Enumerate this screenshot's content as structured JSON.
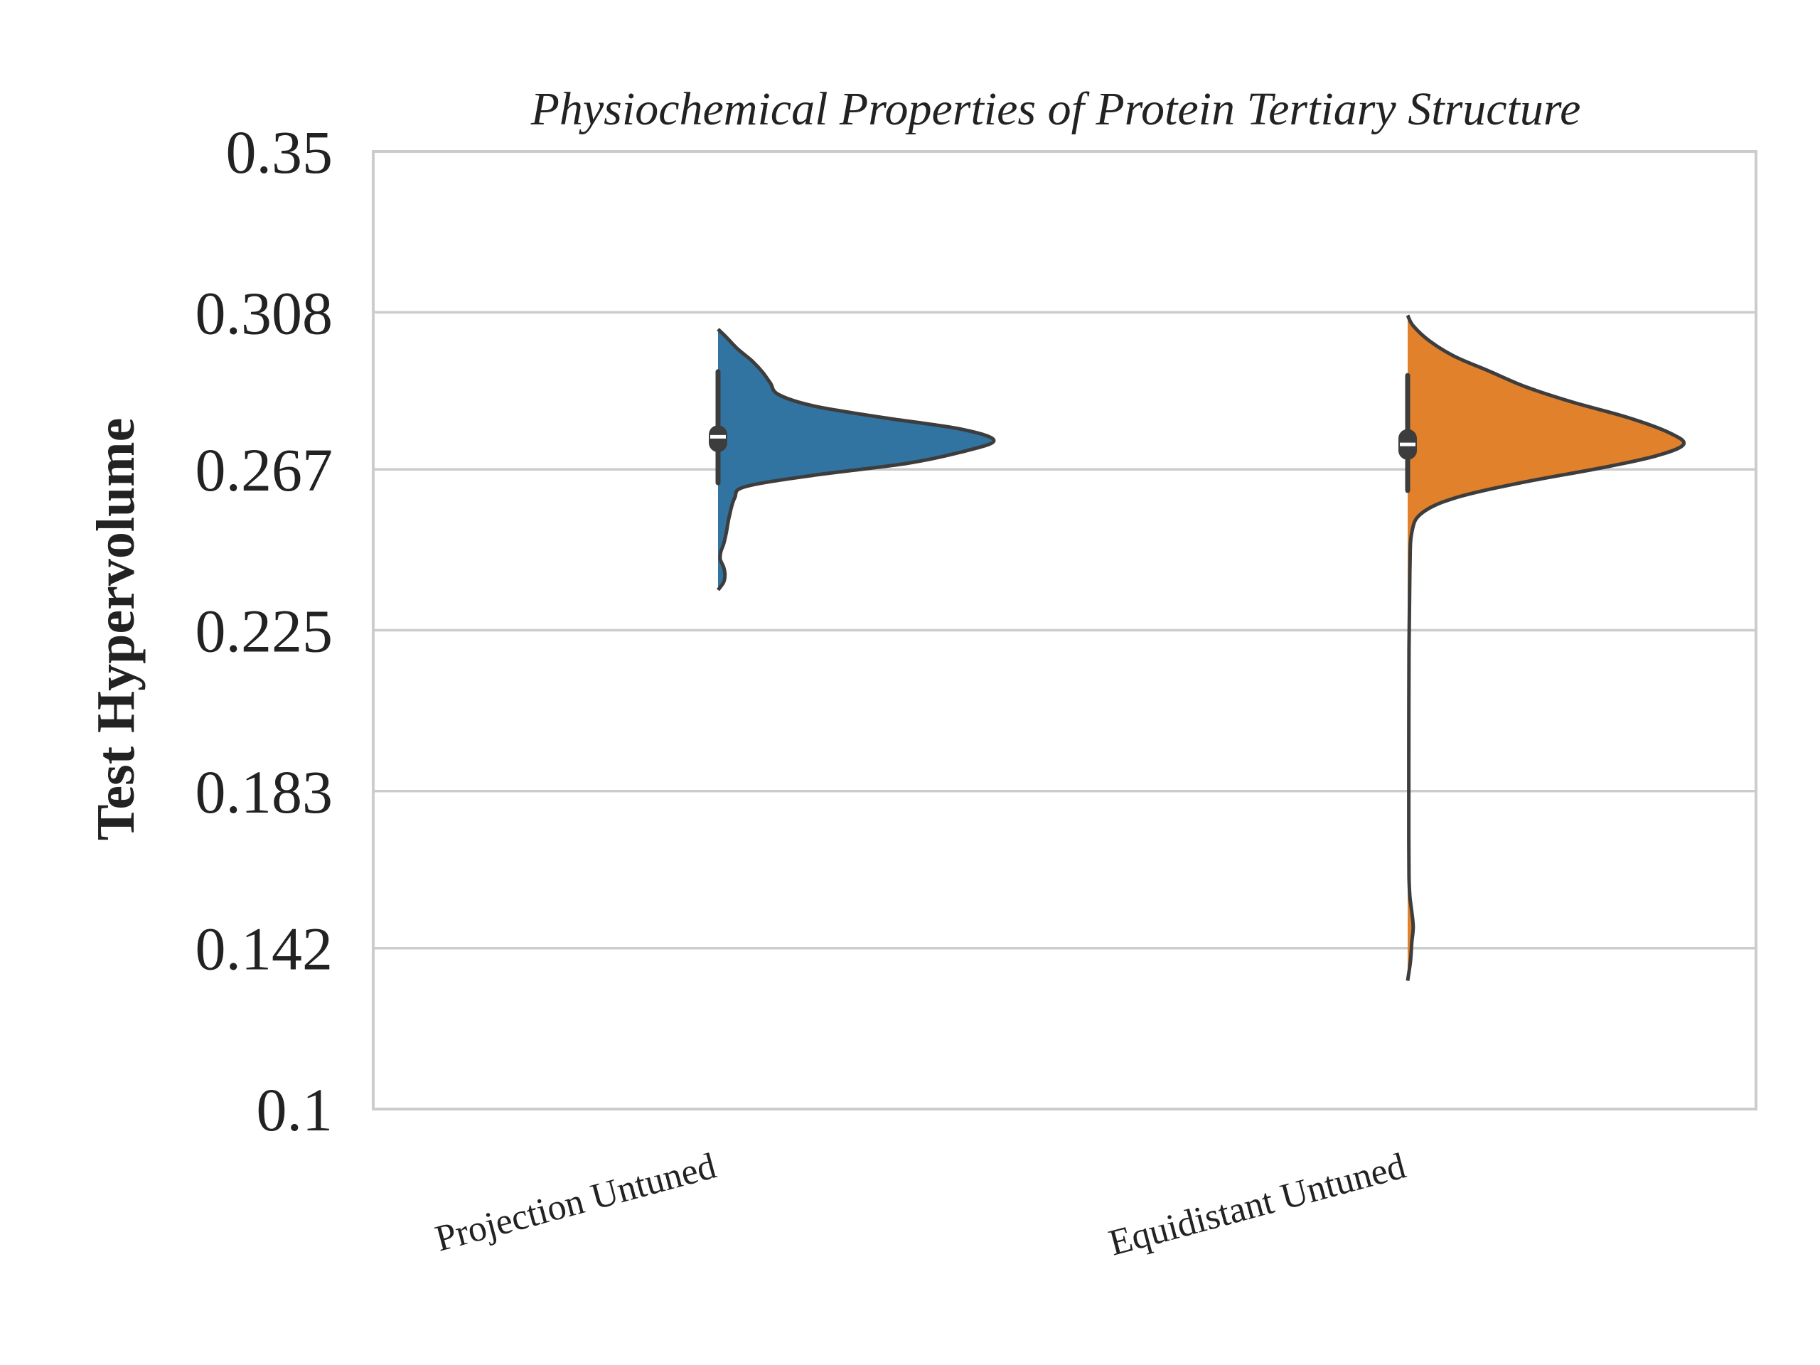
{
  "chart_data": {
    "type": "violin",
    "title": "Physiochemical Properties of Protein Tertiary Structure",
    "xlabel": "",
    "ylabel": "Test Hypervolume",
    "ylim": [
      0.1,
      0.35
    ],
    "yticks": [
      0.1,
      0.142,
      0.183,
      0.225,
      0.267,
      0.308,
      0.35
    ],
    "ytick_labels": [
      "0.1",
      "0.142",
      "0.183",
      "0.225",
      "0.267",
      "0.308",
      "0.35"
    ],
    "grid": "horizontal",
    "categories": [
      "Projection Untuned",
      "Equidistant Untuned"
    ],
    "colors": [
      "#3274a1",
      "#e1812c"
    ],
    "violins": [
      {
        "category": "Projection Untuned",
        "min": 0.2355,
        "max": 0.3036,
        "q1": 0.2715,
        "median": 0.2755,
        "q3": 0.2785,
        "whisker_low": 0.2635,
        "whisker_high": 0.2925,
        "density": [
          [
            0.2355,
            0.0
          ],
          [
            0.2375,
            0.02
          ],
          [
            0.2395,
            0.025
          ],
          [
            0.2415,
            0.02
          ],
          [
            0.2435,
            0.008
          ],
          [
            0.2455,
            0.01
          ],
          [
            0.2475,
            0.02
          ],
          [
            0.2505,
            0.03
          ],
          [
            0.2545,
            0.04
          ],
          [
            0.2595,
            0.06
          ],
          [
            0.2625,
            0.1
          ],
          [
            0.2655,
            0.35
          ],
          [
            0.2685,
            0.68
          ],
          [
            0.2715,
            0.88
          ],
          [
            0.2745,
            1.0
          ],
          [
            0.2775,
            0.88
          ],
          [
            0.2805,
            0.6
          ],
          [
            0.2835,
            0.35
          ],
          [
            0.2865,
            0.22
          ],
          [
            0.2895,
            0.19
          ],
          [
            0.2925,
            0.16
          ],
          [
            0.2955,
            0.12
          ],
          [
            0.2985,
            0.07
          ],
          [
            0.3015,
            0.03
          ],
          [
            0.3036,
            0.0
          ]
        ]
      },
      {
        "category": "Equidistant Untuned",
        "min": 0.1335,
        "max": 0.3072,
        "q1": 0.2695,
        "median": 0.2735,
        "q3": 0.2775,
        "whisker_low": 0.2615,
        "whisker_high": 0.2915,
        "density": [
          [
            0.1335,
            0.0
          ],
          [
            0.1385,
            0.01
          ],
          [
            0.1435,
            0.015
          ],
          [
            0.1475,
            0.02
          ],
          [
            0.1515,
            0.015
          ],
          [
            0.1555,
            0.008
          ],
          [
            0.1605,
            0.005
          ],
          [
            0.1705,
            0.004
          ],
          [
            0.1905,
            0.004
          ],
          [
            0.2205,
            0.005
          ],
          [
            0.2405,
            0.008
          ],
          [
            0.2505,
            0.015
          ],
          [
            0.2555,
            0.05
          ],
          [
            0.2595,
            0.17
          ],
          [
            0.2635,
            0.41
          ],
          [
            0.2675,
            0.71
          ],
          [
            0.2705,
            0.9
          ],
          [
            0.2735,
            1.0
          ],
          [
            0.2765,
            0.95
          ],
          [
            0.2805,
            0.8
          ],
          [
            0.2845,
            0.6
          ],
          [
            0.2885,
            0.43
          ],
          [
            0.2925,
            0.3
          ],
          [
            0.2965,
            0.17
          ],
          [
            0.3005,
            0.08
          ],
          [
            0.3045,
            0.02
          ],
          [
            0.3072,
            0.0
          ]
        ]
      }
    ]
  }
}
